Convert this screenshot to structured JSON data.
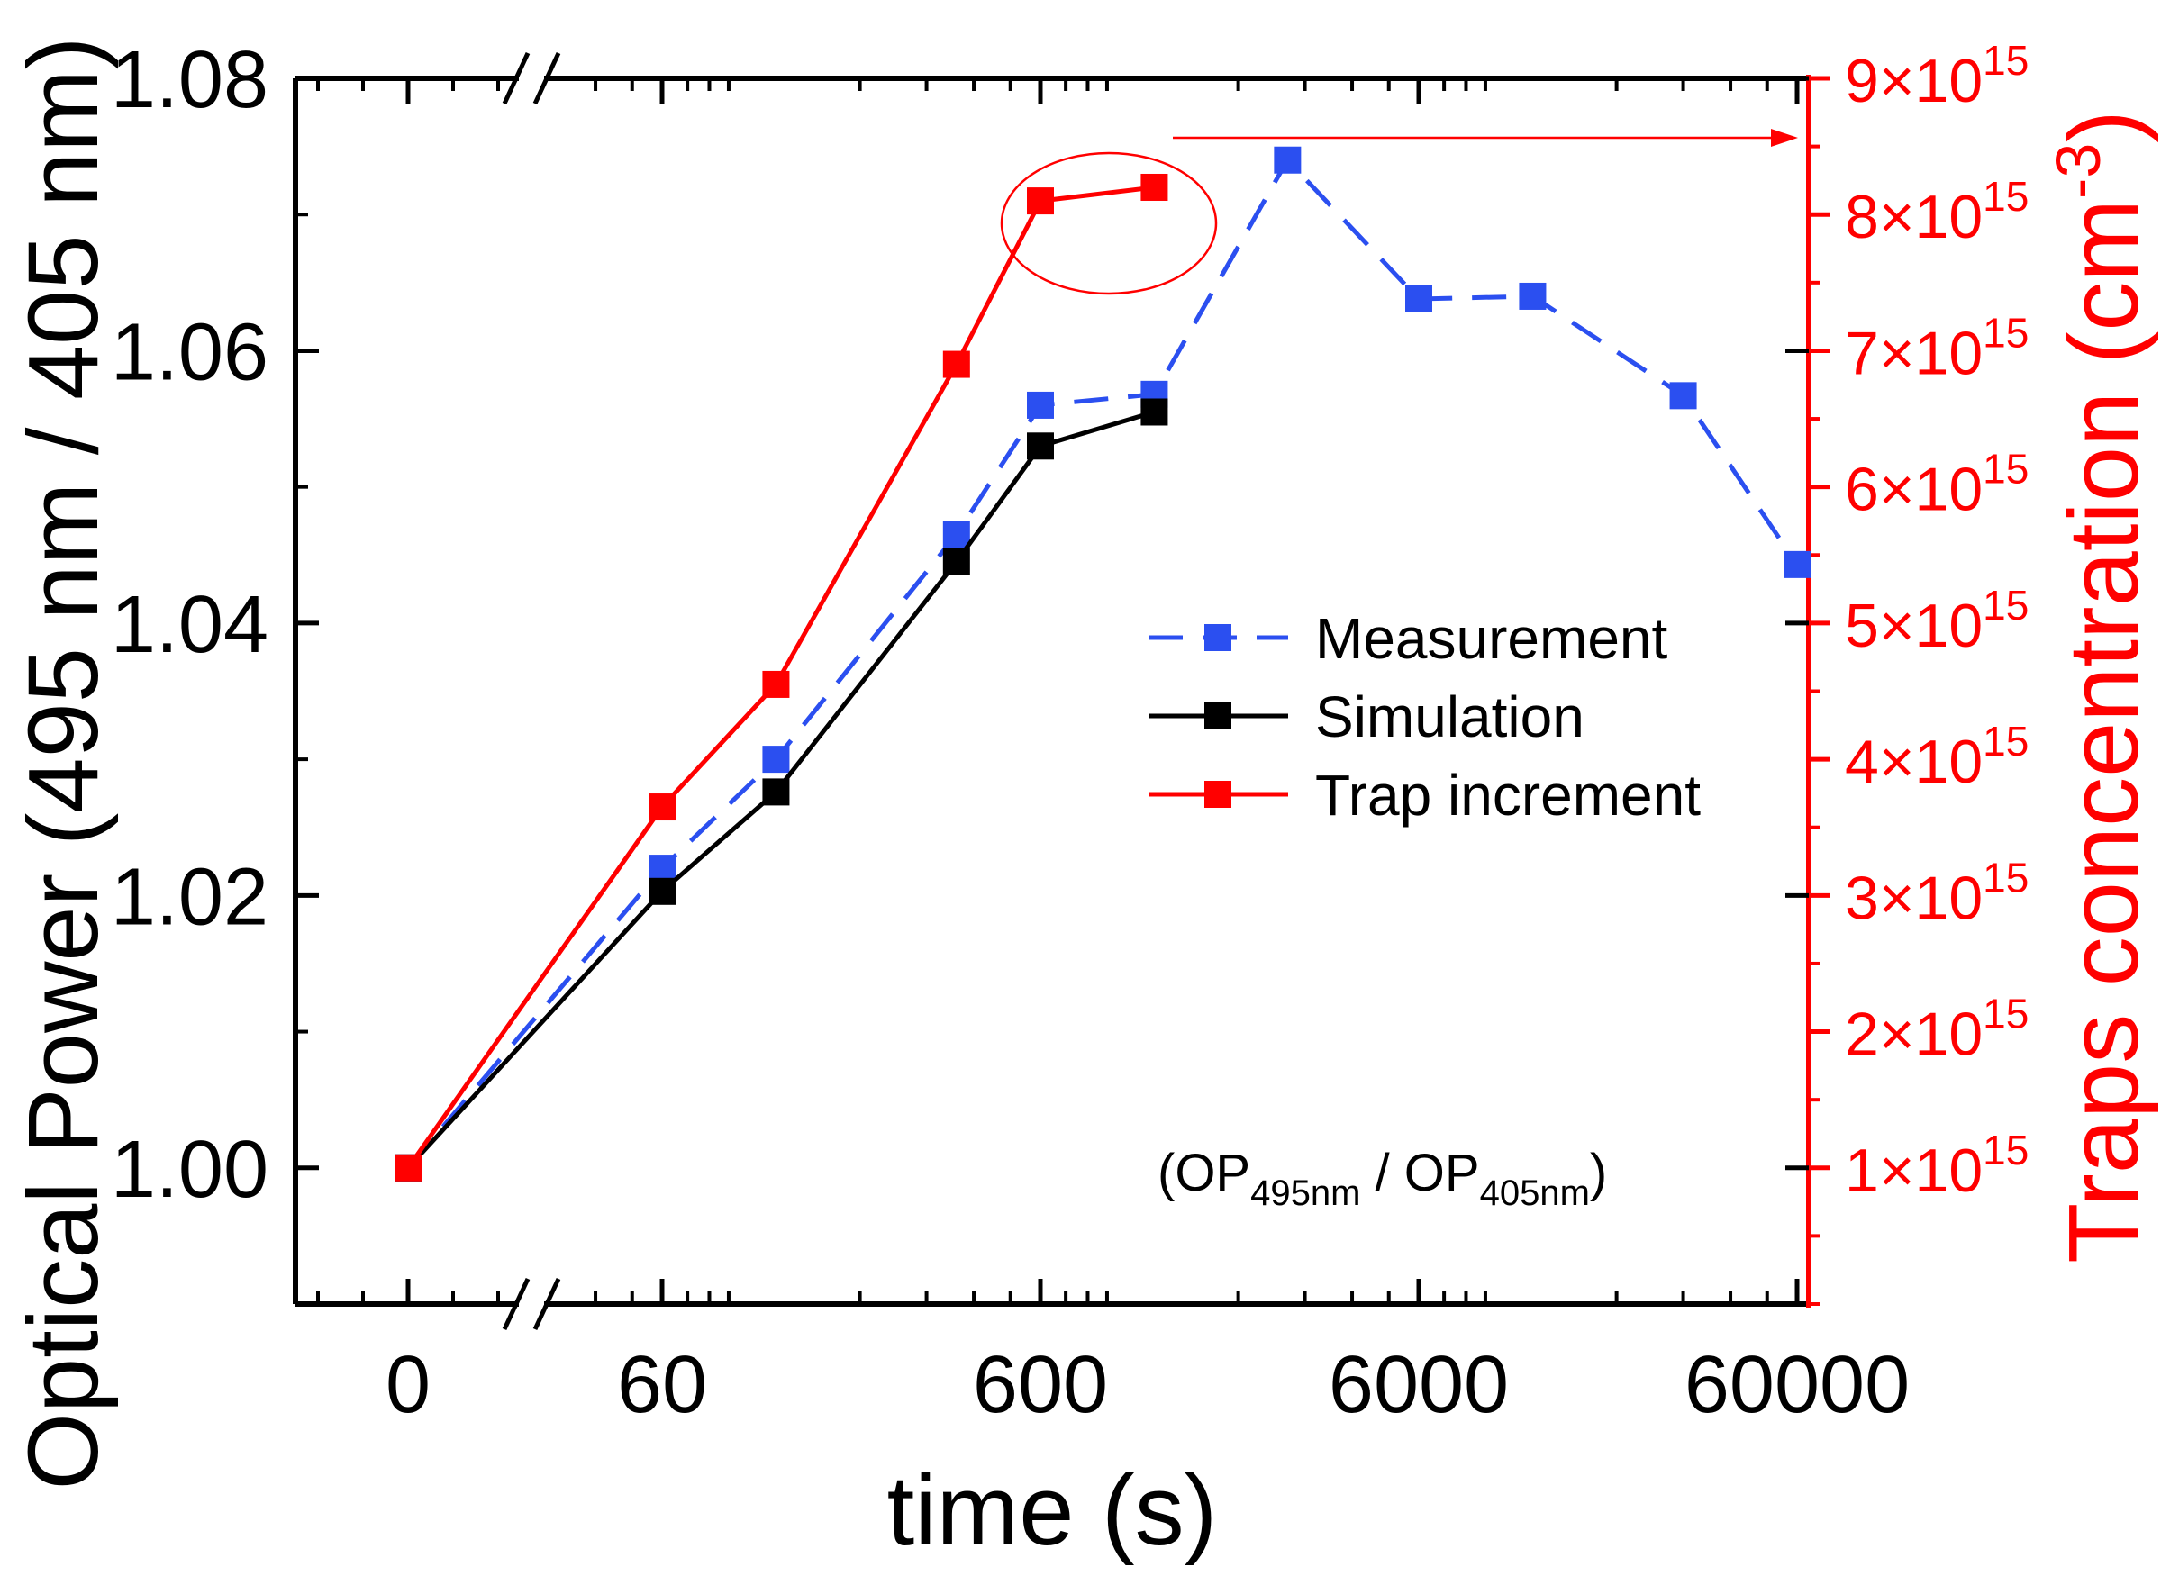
{
  "chart_data": {
    "type": "line",
    "x_label": "time (s)",
    "y_left_label": "Optical Power (495 nm / 405 nm)",
    "y_right_label": "Traps concentration (cm",
    "y_right_label_sup": "-3",
    "y_right_label_end": ")",
    "x_ticks": [
      "0",
      "60",
      "600",
      "6000",
      "60000"
    ],
    "y_left_ticks": [
      "1.00",
      "1.02",
      "1.04",
      "1.06",
      "1.08"
    ],
    "y_left_range": [
      0.99,
      1.08
    ],
    "y_right_ticks": [
      {
        "mantissa": "1×10",
        "exp": "15"
      },
      {
        "mantissa": "2×10",
        "exp": "15"
      },
      {
        "mantissa": "3×10",
        "exp": "15"
      },
      {
        "mantissa": "4×10",
        "exp": "15"
      },
      {
        "mantissa": "5×10",
        "exp": "15"
      },
      {
        "mantissa": "6×10",
        "exp": "15"
      },
      {
        "mantissa": "7×10",
        "exp": "15"
      },
      {
        "mantissa": "8×10",
        "exp": "15"
      },
      {
        "mantissa": "9×10",
        "exp": "15"
      }
    ],
    "y_right_range": [
      0,
      9000000000000000.0
    ],
    "x_scale": "broken: linear segment at 0, log10 from 60 to 60000",
    "series": [
      {
        "name": "Measurement",
        "axis": "left",
        "color": "#2b4ff0",
        "dash": true,
        "x": [
          0,
          60,
          120,
          360,
          600,
          1200,
          2700,
          6000,
          12000,
          30000,
          60000
        ],
        "values": [
          1.0,
          1.022,
          1.03,
          1.0465,
          1.056,
          1.0568,
          1.074,
          1.0638,
          1.064,
          1.0567,
          1.0443
        ]
      },
      {
        "name": "Simulation",
        "axis": "left",
        "color": "#000000",
        "dash": false,
        "x": [
          0,
          60,
          120,
          360,
          600,
          1200
        ],
        "values": [
          1.0,
          1.0203,
          1.0276,
          1.0445,
          1.053,
          1.0555
        ]
      },
      {
        "name": "Trap increment",
        "axis": "right",
        "color": "#ff0000",
        "dash": false,
        "x": [
          0,
          60,
          120,
          360,
          600,
          1200
        ],
        "values": [
          1000000000000000.0,
          3650000000000000.0,
          4550000000000000.0,
          6900000000000000.0,
          8100000000000000.0,
          8200000000000000.0
        ]
      }
    ],
    "legend_position": "center-right",
    "annotation": {
      "text_open": "(OP",
      "sub1": "495nm",
      "text_mid": " / OP",
      "sub2": "405nm",
      "text_close": ")"
    },
    "highlight": "ellipse around last two trap points with arrow to right axis",
    "colors": {
      "axis_right": "#ff0000",
      "axis_left": "#000000"
    }
  }
}
